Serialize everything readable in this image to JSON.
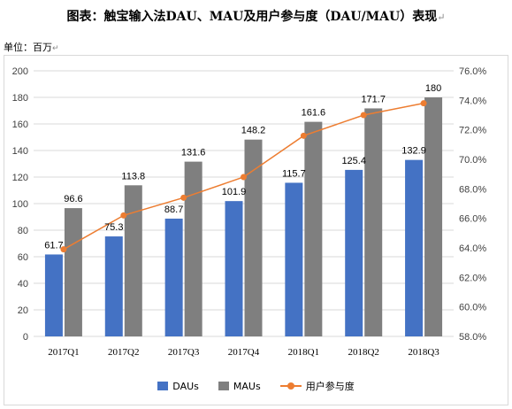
{
  "title": "图表：触宝输入法DAU、MAU及用户参与度（DAU/MAU）表现",
  "unit_label": "单位：百万",
  "return_mark": "↵",
  "colors": {
    "dau": "#4472C4",
    "mau": "#7F7F7F",
    "engagement": "#ED7D31",
    "grid": "#d9d9d9"
  },
  "chart_data": {
    "type": "bar",
    "categories": [
      "2017Q1",
      "2017Q2",
      "2017Q3",
      "2017Q4",
      "2018Q1",
      "2018Q2",
      "2018Q3"
    ],
    "series": [
      {
        "name": "DAUs",
        "type": "bar",
        "axis": "left",
        "values": [
          61.7,
          75.3,
          88.7,
          101.9,
          115.7,
          125.4,
          132.9
        ]
      },
      {
        "name": "MAUs",
        "type": "bar",
        "axis": "left",
        "values": [
          96.6,
          113.8,
          131.6,
          148.2,
          161.6,
          171.7,
          180
        ]
      },
      {
        "name": "用户参与度",
        "type": "line",
        "axis": "right",
        "values": [
          63.9,
          66.2,
          67.4,
          68.8,
          71.6,
          73.0,
          73.8
        ]
      }
    ],
    "data_labels": {
      "DAUs": [
        "61.7",
        "75.3",
        "88.7",
        "101.9",
        "115.7",
        "125.4",
        "132.9"
      ],
      "MAUs": [
        "96.6",
        "113.8",
        "131.6",
        "148.2",
        "161.6",
        "171.7",
        "180"
      ]
    },
    "ylim_left": [
      0,
      200
    ],
    "yticks_left": [
      "0",
      "20",
      "40",
      "60",
      "80",
      "100",
      "120",
      "140",
      "160",
      "180",
      "200"
    ],
    "ylim_right": [
      58,
      76
    ],
    "yticks_right": [
      "58.0%",
      "60.0%",
      "62.0%",
      "64.0%",
      "66.0%",
      "68.0%",
      "70.0%",
      "72.0%",
      "74.0%",
      "76.0%"
    ],
    "grid": true,
    "legend_position": "bottom"
  }
}
